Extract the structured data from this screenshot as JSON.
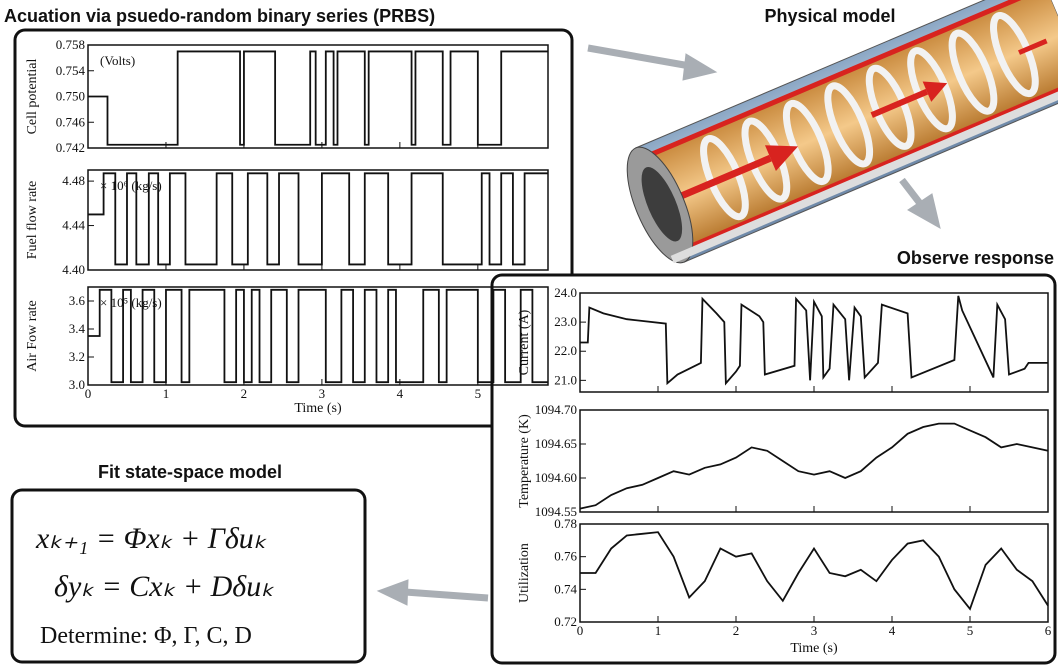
{
  "actuation": {
    "title": "Acuation via psuedo-random binary series (PRBS)",
    "xlim": [
      0,
      5.9
    ],
    "xticks": [
      0,
      1,
      2,
      3,
      4,
      5
    ],
    "xlabel": "Time (s)",
    "charts": [
      {
        "type": "step",
        "ylabel": "Cell potential",
        "unit": "(Volts)",
        "ylim": [
          0.742,
          0.758
        ],
        "yticks": [
          0.742,
          0.746,
          {
            "value": 0.75,
            "label": "0.750"
          },
          0.754,
          0.758
        ],
        "x": [
          0,
          0.25,
          1.15,
          1.95,
          2.0,
          2.4,
          2.85,
          2.92,
          3.05,
          3.15,
          3.2,
          3.55,
          3.6,
          4.15,
          4.2,
          4.55,
          4.65,
          5.0,
          5.3,
          5.9
        ],
        "values": [
          0.75,
          0.7425,
          0.757,
          0.7425,
          0.757,
          0.7425,
          0.757,
          0.7425,
          0.757,
          0.7425,
          0.757,
          0.7425,
          0.757,
          0.7425,
          0.757,
          0.7425,
          0.757,
          0.7425,
          0.757,
          0.757
        ]
      },
      {
        "type": "step",
        "ylabel": "Fuel flow rate",
        "unit": "× 10⁶ (kg/s)",
        "ylim": [
          4.4,
          4.49
        ],
        "yticks": [
          {
            "value": 4.4,
            "label": "4.40"
          },
          4.44,
          4.48
        ],
        "x": [
          0,
          0.2,
          0.35,
          0.5,
          0.62,
          0.78,
          0.9,
          1.05,
          1.25,
          1.65,
          1.85,
          2.05,
          2.3,
          2.45,
          2.7,
          3.0,
          3.35,
          3.55,
          3.85,
          4.15,
          4.55,
          5.05,
          5.15,
          5.3,
          5.45,
          5.6,
          5.9
        ],
        "values": [
          4.45,
          4.487,
          4.405,
          4.487,
          4.405,
          4.487,
          4.405,
          4.487,
          4.405,
          4.487,
          4.405,
          4.487,
          4.405,
          4.487,
          4.405,
          4.487,
          4.405,
          4.487,
          4.405,
          4.487,
          4.405,
          4.487,
          4.405,
          4.487,
          4.405,
          4.487,
          4.487
        ]
      },
      {
        "type": "step",
        "ylabel": "Air Fow rate",
        "unit": "× 10⁵ (kg/s)",
        "ylim": [
          3.0,
          3.7
        ],
        "yticks": [
          {
            "value": 3.0,
            "label": "3.0"
          },
          3.2,
          3.4,
          3.6
        ],
        "x": [
          0,
          0.15,
          0.3,
          0.45,
          0.55,
          0.7,
          0.85,
          1.0,
          1.2,
          1.3,
          1.75,
          1.9,
          2.0,
          2.1,
          2.2,
          2.35,
          2.55,
          2.7,
          3.05,
          3.25,
          3.4,
          3.55,
          3.7,
          3.85,
          3.95,
          4.3,
          4.5,
          4.6,
          5.0,
          5.2,
          5.35,
          5.55,
          5.7,
          5.9
        ],
        "values": [
          3.35,
          3.68,
          3.02,
          3.68,
          3.02,
          3.68,
          3.02,
          3.68,
          3.02,
          3.68,
          3.02,
          3.68,
          3.02,
          3.68,
          3.02,
          3.68,
          3.02,
          3.68,
          3.02,
          3.68,
          3.02,
          3.68,
          3.02,
          3.68,
          3.02,
          3.68,
          3.02,
          3.68,
          3.02,
          3.68,
          3.02,
          3.68,
          3.02,
          3.02
        ]
      }
    ]
  },
  "physical": {
    "title": "Physical model"
  },
  "observe": {
    "title": "Observe response",
    "xlim": [
      0,
      6
    ],
    "xticks": [
      0,
      1,
      2,
      3,
      4,
      5,
      6
    ],
    "xlabel": "Time (s)",
    "charts": [
      {
        "type": "line",
        "ylabel": "Current (A)",
        "ylim": [
          20.6,
          24.0
        ],
        "yticks": [
          {
            "value": 21,
            "label": "21.0"
          },
          {
            "value": 22,
            "label": "22.0"
          },
          {
            "value": 23,
            "label": "23.0"
          },
          {
            "value": 24,
            "label": "24.0"
          }
        ],
        "x": [
          0,
          0.1,
          0.12,
          0.3,
          0.6,
          1.1,
          1.12,
          1.25,
          1.55,
          1.57,
          1.75,
          1.85,
          1.87,
          2.0,
          2.05,
          2.07,
          2.3,
          2.35,
          2.37,
          2.75,
          2.77,
          2.9,
          2.95,
          3.0,
          3.1,
          3.12,
          3.2,
          3.25,
          3.4,
          3.45,
          3.52,
          3.6,
          3.65,
          3.82,
          3.87,
          4.2,
          4.25,
          4.8,
          4.85,
          4.9,
          5.3,
          5.35,
          5.45,
          5.5,
          5.7,
          5.75,
          6.0
        ],
        "values": [
          22.3,
          22.3,
          23.5,
          23.3,
          23.1,
          22.95,
          20.9,
          21.2,
          21.6,
          23.8,
          23.3,
          23.0,
          20.9,
          21.3,
          21.5,
          23.6,
          23.2,
          23.0,
          21.2,
          21.5,
          23.8,
          23.4,
          21.0,
          23.7,
          23.2,
          21.1,
          21.4,
          23.6,
          23.1,
          21.0,
          23.5,
          23.2,
          21.1,
          21.6,
          23.6,
          23.3,
          21.1,
          21.7,
          23.9,
          23.4,
          21.1,
          23.6,
          23.1,
          21.2,
          21.4,
          21.6,
          21.6
        ]
      },
      {
        "type": "line",
        "ylabel": "Temperature (K)",
        "ylim": [
          1094.55,
          1094.7
        ],
        "yticks": [
          1094.55,
          {
            "value": 1094.6,
            "label": "1094.60"
          },
          1094.65,
          {
            "value": 1094.7,
            "label": "1094.70"
          }
        ],
        "x": [
          0,
          0.2,
          0.4,
          0.6,
          0.8,
          1,
          1.2,
          1.4,
          1.6,
          1.8,
          2,
          2.2,
          2.4,
          2.6,
          2.8,
          3,
          3.2,
          3.4,
          3.6,
          3.8,
          4,
          4.2,
          4.4,
          4.6,
          4.8,
          5,
          5.2,
          5.4,
          5.6,
          5.8,
          6
        ],
        "values": [
          1094.555,
          1094.56,
          1094.575,
          1094.585,
          1094.59,
          1094.6,
          1094.61,
          1094.605,
          1094.615,
          1094.62,
          1094.63,
          1094.645,
          1094.64,
          1094.625,
          1094.61,
          1094.605,
          1094.61,
          1094.6,
          1094.61,
          1094.63,
          1094.645,
          1094.665,
          1094.675,
          1094.68,
          1094.68,
          1094.67,
          1094.66,
          1094.645,
          1094.65,
          1094.645,
          1094.64
        ]
      },
      {
        "type": "line",
        "ylabel": "Utilization",
        "ylim": [
          0.72,
          0.78
        ],
        "yticks": [
          0.72,
          0.74,
          0.76,
          0.78
        ],
        "x": [
          0,
          0.2,
          0.4,
          0.6,
          0.8,
          1,
          1.2,
          1.4,
          1.6,
          1.8,
          2,
          2.2,
          2.4,
          2.6,
          2.8,
          3,
          3.2,
          3.4,
          3.6,
          3.8,
          4,
          4.2,
          4.4,
          4.6,
          4.8,
          5,
          5.2,
          5.4,
          5.6,
          5.8,
          6
        ],
        "values": [
          0.75,
          0.75,
          0.765,
          0.773,
          0.774,
          0.775,
          0.76,
          0.735,
          0.745,
          0.765,
          0.76,
          0.762,
          0.745,
          0.733,
          0.75,
          0.765,
          0.75,
          0.748,
          0.752,
          0.745,
          0.758,
          0.768,
          0.77,
          0.76,
          0.74,
          0.728,
          0.755,
          0.765,
          0.752,
          0.745,
          0.73
        ]
      }
    ]
  },
  "fit": {
    "title": "Fit state-space model",
    "equations": [
      "xₖ₊₁ = Φxₖ + Γδuₖ",
      "δyₖ = Cxₖ + Dδuₖ"
    ],
    "determine": "Determine: Φ, Γ, C, D"
  }
}
